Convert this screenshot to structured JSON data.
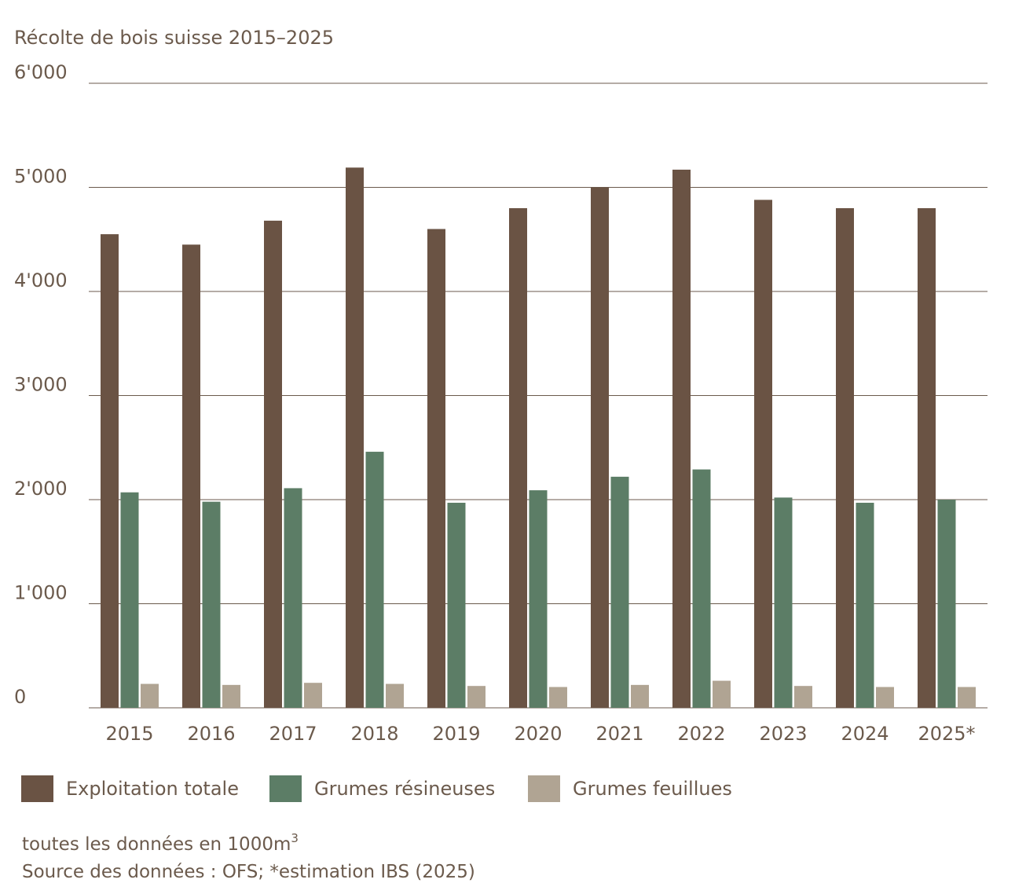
{
  "chart_data": {
    "type": "bar",
    "title": "Récolte de bois suisse 2015–2025",
    "categories": [
      "2015",
      "2016",
      "2017",
      "2018",
      "2019",
      "2020",
      "2021",
      "2022",
      "2023",
      "2024",
      "2025*"
    ],
    "series": [
      {
        "name": "Exploitation totale",
        "color": "#6a5344",
        "values": [
          4550,
          4450,
          4680,
          5190,
          4600,
          4800,
          5000,
          5170,
          4880,
          4800,
          4800
        ]
      },
      {
        "name": "Grumes résineuses",
        "color": "#5c7d66",
        "values": [
          2070,
          1980,
          2110,
          2460,
          1970,
          2090,
          2220,
          2290,
          2020,
          1970,
          2000
        ]
      },
      {
        "name": "Grumes feuillues",
        "color": "#b0a493",
        "values": [
          230,
          220,
          240,
          230,
          210,
          200,
          220,
          260,
          210,
          200,
          200
        ]
      }
    ],
    "ylim": [
      0,
      6000
    ],
    "yticks": [
      0,
      {
        "value": 1000,
        "label": "1'000"
      },
      {
        "value": 2000,
        "label": "2'000"
      },
      {
        "value": 3000,
        "label": "3'000"
      },
      {
        "value": 4000,
        "label": "4'000"
      },
      {
        "value": 5000,
        "label": "5'000"
      },
      {
        "value": 6000,
        "label": "6'000"
      }
    ],
    "grid": true,
    "legend": "bottom",
    "units_note": "toutes les données en 1000m",
    "units_superscript": "3",
    "source": "Source des données : OFS; *estimation IBS (2025)"
  }
}
